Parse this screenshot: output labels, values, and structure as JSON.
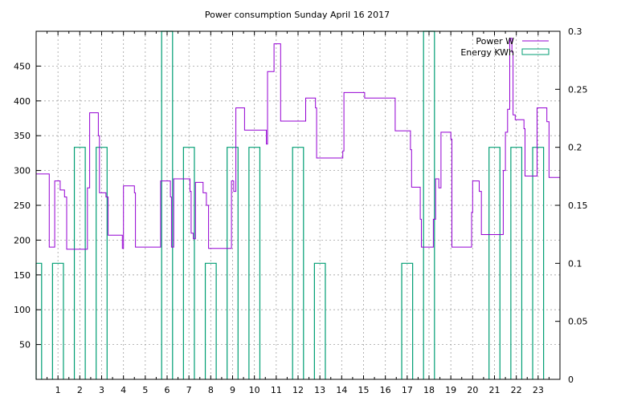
{
  "chart_data": {
    "type": "line",
    "title": "Power consumption Sunday April 16 2017",
    "xlabel": "",
    "ylabel": "",
    "y2label": "",
    "xlim": [
      0,
      24
    ],
    "ylim": [
      0,
      500
    ],
    "y2lim": [
      0,
      0.3
    ],
    "x_ticks": [
      "1",
      "2",
      "3",
      "4",
      "5",
      "6",
      "7",
      "8",
      "9",
      "10",
      "11",
      "12",
      "13",
      "14",
      "15",
      "16",
      "17",
      "18",
      "19",
      "20",
      "21",
      "22",
      "23"
    ],
    "y_ticks": [
      50,
      100,
      150,
      200,
      250,
      300,
      350,
      400,
      450
    ],
    "y2_ticks": [
      "0",
      "0.05",
      "0.1",
      "0.15",
      "0.2",
      "0.25",
      "0.3"
    ],
    "grid": true,
    "legend_position": "top-right",
    "colors": {
      "power": "#9400d3",
      "energy": "#009e73"
    },
    "series": [
      {
        "name": "Power W",
        "axis": "left",
        "style": "steps",
        "points": [
          [
            0.0,
            295
          ],
          [
            0.55,
            295
          ],
          [
            0.6,
            190
          ],
          [
            0.8,
            190
          ],
          [
            0.85,
            285
          ],
          [
            1.0,
            285
          ],
          [
            1.1,
            272
          ],
          [
            1.3,
            262
          ],
          [
            1.4,
            187
          ],
          [
            2.2,
            187
          ],
          [
            2.35,
            275
          ],
          [
            2.45,
            383
          ],
          [
            2.8,
            383
          ],
          [
            2.85,
            350
          ],
          [
            2.9,
            268
          ],
          [
            3.15,
            268
          ],
          [
            3.2,
            262
          ],
          [
            3.3,
            207
          ],
          [
            3.9,
            207
          ],
          [
            3.95,
            188
          ],
          [
            4.0,
            278
          ],
          [
            4.4,
            278
          ],
          [
            4.5,
            268
          ],
          [
            4.55,
            190
          ],
          [
            5.0,
            190
          ],
          [
            5.65,
            190
          ],
          [
            5.7,
            285
          ],
          [
            6.1,
            285
          ],
          [
            6.15,
            262
          ],
          [
            6.2,
            190
          ],
          [
            6.3,
            288
          ],
          [
            7.0,
            288
          ],
          [
            7.05,
            270
          ],
          [
            7.1,
            210
          ],
          [
            7.2,
            202
          ],
          [
            7.3,
            283
          ],
          [
            7.6,
            283
          ],
          [
            7.65,
            268
          ],
          [
            7.8,
            250
          ],
          [
            7.9,
            188
          ],
          [
            8.6,
            188
          ],
          [
            8.9,
            188
          ],
          [
            8.95,
            285
          ],
          [
            9.05,
            270
          ],
          [
            9.15,
            390
          ],
          [
            9.5,
            390
          ],
          [
            9.55,
            358
          ],
          [
            10.5,
            358
          ],
          [
            10.55,
            338
          ],
          [
            10.6,
            442
          ],
          [
            10.85,
            442
          ],
          [
            10.9,
            482
          ],
          [
            11.1,
            482
          ],
          [
            11.2,
            371
          ],
          [
            12.3,
            371
          ],
          [
            12.35,
            404
          ],
          [
            12.75,
            404
          ],
          [
            12.8,
            390
          ],
          [
            12.85,
            318
          ],
          [
            14.0,
            318
          ],
          [
            14.05,
            328
          ],
          [
            14.1,
            412
          ],
          [
            15.0,
            412
          ],
          [
            15.05,
            404
          ],
          [
            16.4,
            404
          ],
          [
            16.45,
            357
          ],
          [
            17.1,
            357
          ],
          [
            17.15,
            330
          ],
          [
            17.2,
            276
          ],
          [
            17.5,
            276
          ],
          [
            17.6,
            230
          ],
          [
            17.65,
            190
          ],
          [
            18.1,
            190
          ],
          [
            18.2,
            230
          ],
          [
            18.3,
            288
          ],
          [
            18.4,
            288
          ],
          [
            18.45,
            275
          ],
          [
            18.55,
            355
          ],
          [
            18.95,
            355
          ],
          [
            19.0,
            345
          ],
          [
            19.05,
            190
          ],
          [
            19.9,
            190
          ],
          [
            19.95,
            240
          ],
          [
            20.0,
            285
          ],
          [
            20.25,
            285
          ],
          [
            20.3,
            270
          ],
          [
            20.4,
            208
          ],
          [
            21.3,
            208
          ],
          [
            21.4,
            300
          ],
          [
            21.5,
            355
          ],
          [
            21.6,
            388
          ],
          [
            21.7,
            490
          ],
          [
            21.8,
            470
          ],
          [
            21.85,
            380
          ],
          [
            21.95,
            373
          ],
          [
            22.3,
            373
          ],
          [
            22.35,
            360
          ],
          [
            22.4,
            292
          ],
          [
            22.9,
            292
          ],
          [
            22.95,
            390
          ],
          [
            23.35,
            390
          ],
          [
            23.4,
            370
          ],
          [
            23.5,
            290
          ],
          [
            24.0,
            290
          ]
        ]
      },
      {
        "name": "Energy KWh",
        "axis": "right",
        "style": "bars",
        "bars": [
          [
            0.0,
            0.25,
            0.1
          ],
          [
            0.75,
            1.25,
            0.1
          ],
          [
            1.75,
            2.25,
            0.2
          ],
          [
            2.75,
            3.25,
            0.2
          ],
          [
            5.75,
            6.25,
            0.3
          ],
          [
            6.75,
            7.25,
            0.2
          ],
          [
            7.75,
            8.25,
            0.1
          ],
          [
            8.75,
            9.25,
            0.2
          ],
          [
            9.75,
            10.25,
            0.2
          ],
          [
            11.75,
            12.25,
            0.2
          ],
          [
            12.75,
            13.25,
            0.1
          ],
          [
            16.75,
            17.25,
            0.1
          ],
          [
            17.75,
            18.25,
            0.3
          ],
          [
            20.75,
            21.25,
            0.2
          ],
          [
            21.75,
            22.25,
            0.2
          ],
          [
            22.75,
            23.25,
            0.2
          ]
        ]
      }
    ]
  }
}
